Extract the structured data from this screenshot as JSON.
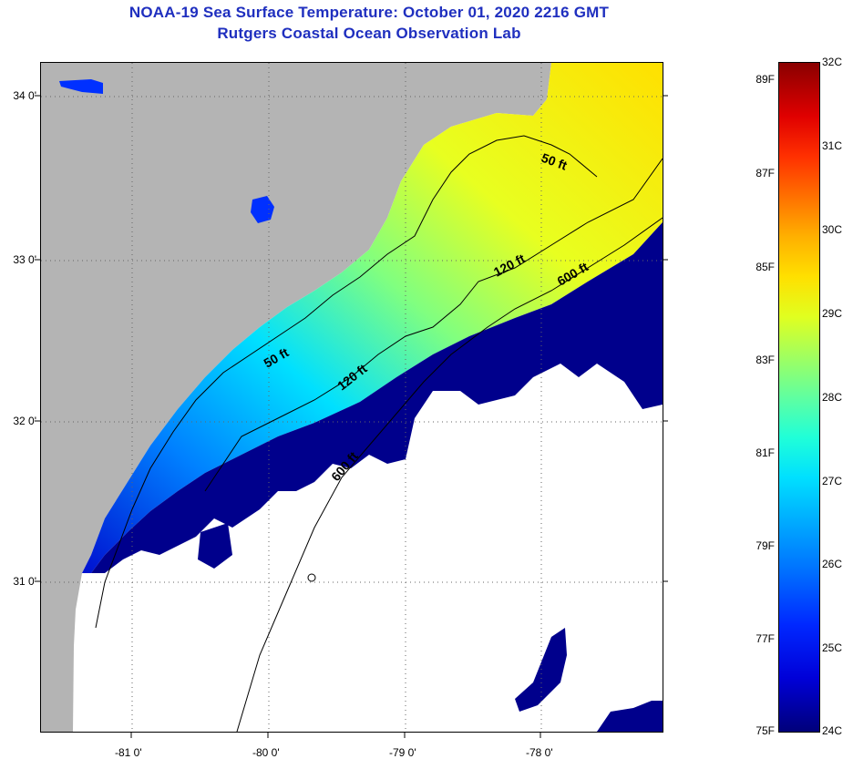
{
  "header": {
    "title_line1": "NOAA-19 Sea Surface Temperature:  October 01, 2020 2216 GMT",
    "title_line2": "Rutgers Coastal Ocean Observation Lab"
  },
  "map": {
    "lat_labels": [
      "34 0'",
      "33 0'",
      "32 0'",
      "31 0'"
    ],
    "lon_labels": [
      "-81 0'",
      "-80 0'",
      "-79 0'",
      "-78 0'"
    ],
    "contour_labels": [
      "50 ft",
      "50 ft",
      "120 ft",
      "120 ft",
      "600 ft",
      "600 ft"
    ],
    "colors": {
      "land": "#b4b4b4",
      "cloud": "#ffffff",
      "cold": "#00008c",
      "warm": "#ffff00"
    }
  },
  "colorbar": {
    "fahrenheit_labels": [
      "89F",
      "87F",
      "85F",
      "83F",
      "81F",
      "79F",
      "77F",
      "75F"
    ],
    "celsius_labels": [
      "32C",
      "31C",
      "30C",
      "29C",
      "28C",
      "27C",
      "26C",
      "25C",
      "24C"
    ],
    "range_celsius": [
      24,
      32
    ]
  }
}
